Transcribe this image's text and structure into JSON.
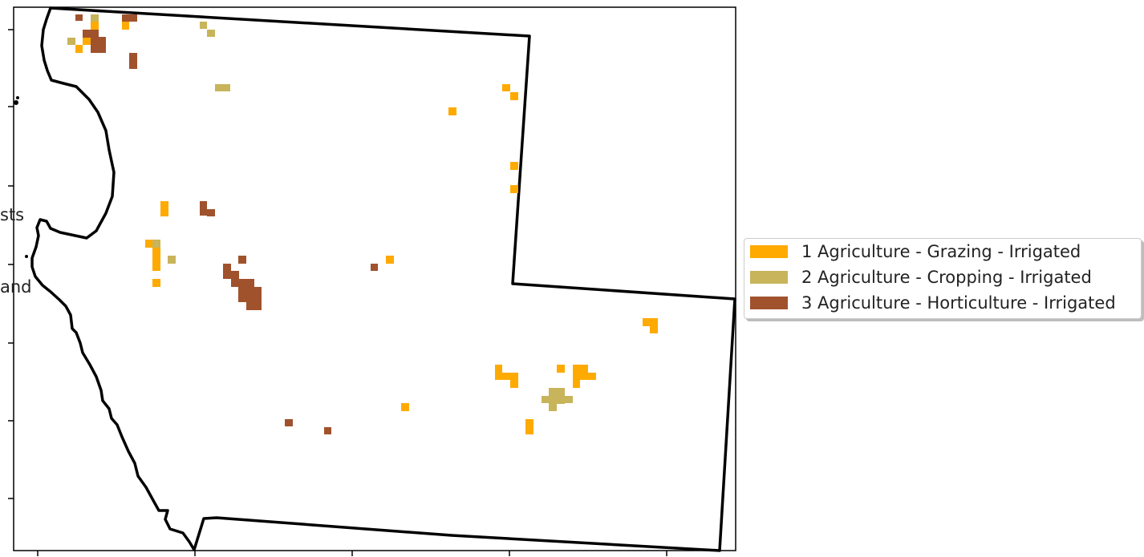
{
  "map": {
    "classes": [
      {
        "code": 1,
        "label": "1 Agriculture - Grazing - Irrigated",
        "color": "#ffaa00"
      },
      {
        "code": 2,
        "label": "2 Agriculture - Cropping - Irrigated",
        "color": "#c8b45a"
      },
      {
        "code": 3,
        "label": "3 Agriculture - Horticulture - Irrigated",
        "color": "#a0522d"
      }
    ],
    "boundary_color": "#000000",
    "cut_labels": [
      "sts",
      "and"
    ]
  }
}
